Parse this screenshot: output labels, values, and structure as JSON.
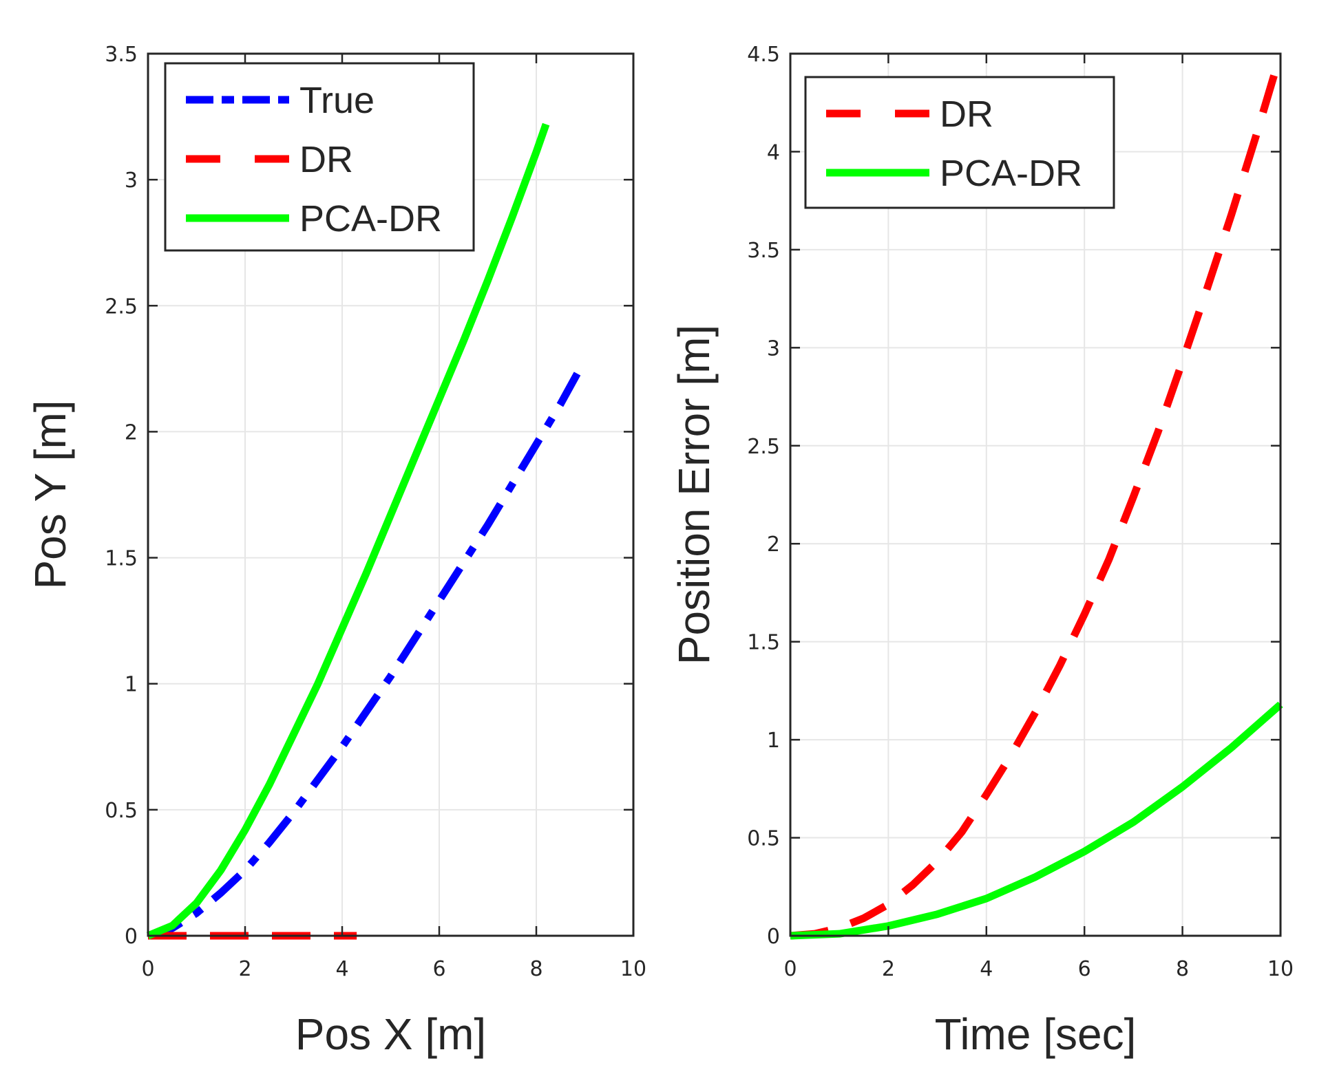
{
  "chart_data": [
    {
      "type": "line",
      "title": "",
      "xlabel": "Pos X [m]",
      "ylabel": "Pos Y [m]",
      "xlim": [
        0,
        10
      ],
      "ylim": [
        0,
        3.5
      ],
      "xticks": [
        0,
        2,
        4,
        6,
        8,
        10
      ],
      "xtick_labels": [
        "0",
        "2",
        "4",
        "6",
        "8",
        "10"
      ],
      "yticks": [
        0,
        0.5,
        1,
        1.5,
        2,
        2.5,
        3,
        3.5
      ],
      "ytick_labels": [
        "0",
        "0.5",
        "1",
        "1.5",
        "2",
        "2.5",
        "3",
        "3.5"
      ],
      "grid": true,
      "legend_position": "top-left",
      "series": [
        {
          "name": "True",
          "color": "#0000ff",
          "style": "dashdot",
          "x": [
            0,
            0.5,
            1,
            1.5,
            2,
            2.5,
            3,
            3.5,
            4,
            4.5,
            5,
            5.5,
            6,
            6.5,
            7,
            7.5,
            8,
            8.5,
            8.9
          ],
          "y": [
            0,
            0.03,
            0.09,
            0.17,
            0.26,
            0.37,
            0.49,
            0.62,
            0.75,
            0.89,
            1.03,
            1.18,
            1.33,
            1.48,
            1.63,
            1.79,
            1.95,
            2.11,
            2.25
          ]
        },
        {
          "name": "DR",
          "color": "#ff0000",
          "style": "dashed",
          "x": [
            0,
            1,
            2,
            3,
            4,
            4.3
          ],
          "y": [
            0,
            0,
            0,
            0,
            0,
            0
          ]
        },
        {
          "name": "PCA-DR",
          "color": "#00ff00",
          "style": "solid",
          "x": [
            0,
            0.5,
            1,
            1.5,
            2,
            2.5,
            3,
            3.5,
            4,
            4.5,
            5,
            5.5,
            6,
            6.5,
            7,
            7.5,
            8,
            8.2
          ],
          "y": [
            0,
            0.04,
            0.13,
            0.26,
            0.42,
            0.6,
            0.8,
            1.0,
            1.22,
            1.44,
            1.67,
            1.9,
            2.13,
            2.36,
            2.6,
            2.85,
            3.11,
            3.22
          ]
        }
      ]
    },
    {
      "type": "line",
      "title": "",
      "xlabel": "Time [sec]",
      "ylabel": "Position Error [m]",
      "xlim": [
        0,
        10
      ],
      "ylim": [
        0,
        4.5
      ],
      "xticks": [
        0,
        2,
        4,
        6,
        8,
        10
      ],
      "xtick_labels": [
        "0",
        "2",
        "4",
        "6",
        "8",
        "10"
      ],
      "yticks": [
        0,
        0.5,
        1,
        1.5,
        2,
        2.5,
        3,
        3.5,
        4,
        4.5
      ],
      "ytick_labels": [
        "0",
        "0.5",
        "1",
        "1.5",
        "2",
        "2.5",
        "3",
        "3.5",
        "4",
        "4.5"
      ],
      "grid": true,
      "legend_position": "top-left",
      "series": [
        {
          "name": "DR",
          "color": "#ff0000",
          "style": "dashed",
          "x": [
            0,
            0.5,
            1,
            1.5,
            2,
            2.5,
            3,
            3.5,
            4,
            4.5,
            5,
            5.5,
            6,
            6.5,
            7,
            7.5,
            8,
            8.5,
            9,
            9.5,
            10
          ],
          "y": [
            0,
            0.01,
            0.04,
            0.09,
            0.16,
            0.26,
            0.38,
            0.53,
            0.72,
            0.92,
            1.14,
            1.38,
            1.64,
            1.92,
            2.24,
            2.57,
            2.93,
            3.3,
            3.68,
            4.08,
            4.5
          ]
        },
        {
          "name": "PCA-DR",
          "color": "#00ff00",
          "style": "solid",
          "x": [
            0,
            1,
            2,
            3,
            4,
            5,
            6,
            7,
            8,
            9,
            10
          ],
          "y": [
            0,
            0.01,
            0.05,
            0.11,
            0.19,
            0.3,
            0.43,
            0.58,
            0.76,
            0.96,
            1.18
          ]
        }
      ]
    }
  ]
}
